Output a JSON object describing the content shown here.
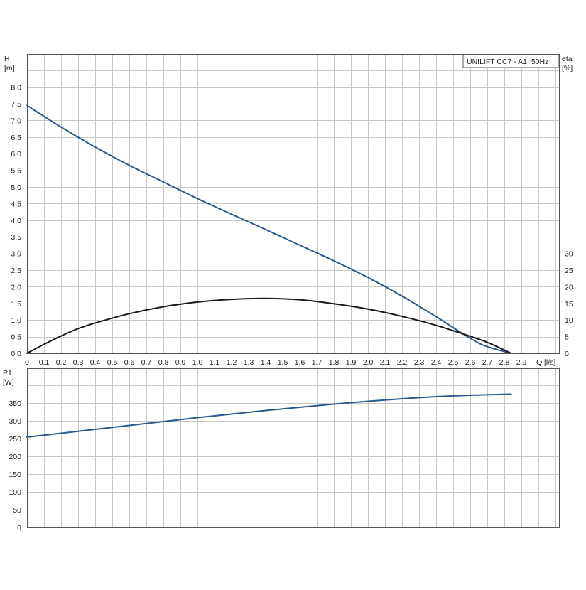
{
  "chart_data": {
    "type": "line",
    "title": "UNILIFT CC7 - A1, 50Hz",
    "colors": {
      "head": "#2a5b8c",
      "efficiency": "#1a1a1a",
      "power": "#2a5b8c"
    },
    "x_axis": {
      "label": "Q [l/s]",
      "label_q": "Q",
      "label_unit": "[l/s]",
      "range": [
        0,
        3.1
      ],
      "ticks": [
        "0",
        "0.1",
        "0.2",
        "0.3",
        "0.4",
        "0.5",
        "0.6",
        "0.7",
        "0.8",
        "0.9",
        "1.0",
        "1.1",
        "1.2",
        "1.3",
        "1.4",
        "1.5",
        "1.6",
        "1.7",
        "1.8",
        "1.9",
        "2.0",
        "2.1",
        "2.2",
        "2.3",
        "2.4",
        "2.5",
        "2.6",
        "2.7",
        "2.8",
        "2.9"
      ]
    },
    "upper": {
      "y_left": {
        "label_line1": "H",
        "label_line2": "[m]",
        "range": [
          0,
          8.5
        ],
        "ticks": [
          "0.0",
          "0.5",
          "1.0",
          "1.5",
          "2.0",
          "2.5",
          "3.0",
          "3.5",
          "4.0",
          "4.5",
          "5.0",
          "5.5",
          "6.0",
          "6.5",
          "7.0",
          "7.5",
          "8.0"
        ]
      },
      "y_right": {
        "label_line1": "eta",
        "label_line2": "[%]",
        "range": [
          0,
          85
        ],
        "ticks": [
          "0",
          "5",
          "10",
          "15",
          "20",
          "25",
          "30"
        ]
      },
      "series": [
        {
          "key": "head",
          "axis": "left",
          "x": [
            0,
            0.2,
            0.4,
            0.6,
            0.8,
            1.0,
            1.2,
            1.4,
            1.6,
            1.8,
            2.0,
            2.2,
            2.4,
            2.6,
            2.7,
            2.84
          ],
          "y": [
            7.45,
            6.8,
            6.2,
            5.65,
            5.15,
            4.65,
            4.18,
            3.72,
            3.25,
            2.78,
            2.28,
            1.72,
            1.1,
            0.45,
            0.2,
            0.0
          ]
        },
        {
          "key": "efficiency",
          "axis": "right",
          "x": [
            0,
            0.1,
            0.2,
            0.3,
            0.4,
            0.6,
            0.8,
            1.0,
            1.2,
            1.4,
            1.6,
            1.8,
            2.0,
            2.2,
            2.4,
            2.6,
            2.7,
            2.84
          ],
          "y": [
            0,
            2.7,
            5.2,
            7.4,
            9.1,
            11.9,
            14.0,
            15.4,
            16.2,
            16.5,
            16.1,
            14.9,
            13.3,
            11.1,
            8.4,
            5.1,
            3.3,
            0
          ]
        }
      ]
    },
    "lower": {
      "y_left": {
        "label_line1": "P1",
        "label_line2": "[W]",
        "range": [
          0,
          420
        ],
        "ticks": [
          "0",
          "50",
          "100",
          "150",
          "200",
          "250",
          "300",
          "350"
        ]
      },
      "series": [
        {
          "key": "power",
          "axis": "left",
          "x": [
            0,
            0.2,
            0.4,
            0.6,
            0.8,
            1.0,
            1.2,
            1.4,
            1.6,
            1.8,
            2.0,
            2.2,
            2.4,
            2.6,
            2.84
          ],
          "y": [
            254,
            265,
            276,
            287,
            298,
            309,
            319,
            329,
            338,
            347,
            355,
            362,
            368,
            372,
            375
          ]
        }
      ]
    }
  }
}
